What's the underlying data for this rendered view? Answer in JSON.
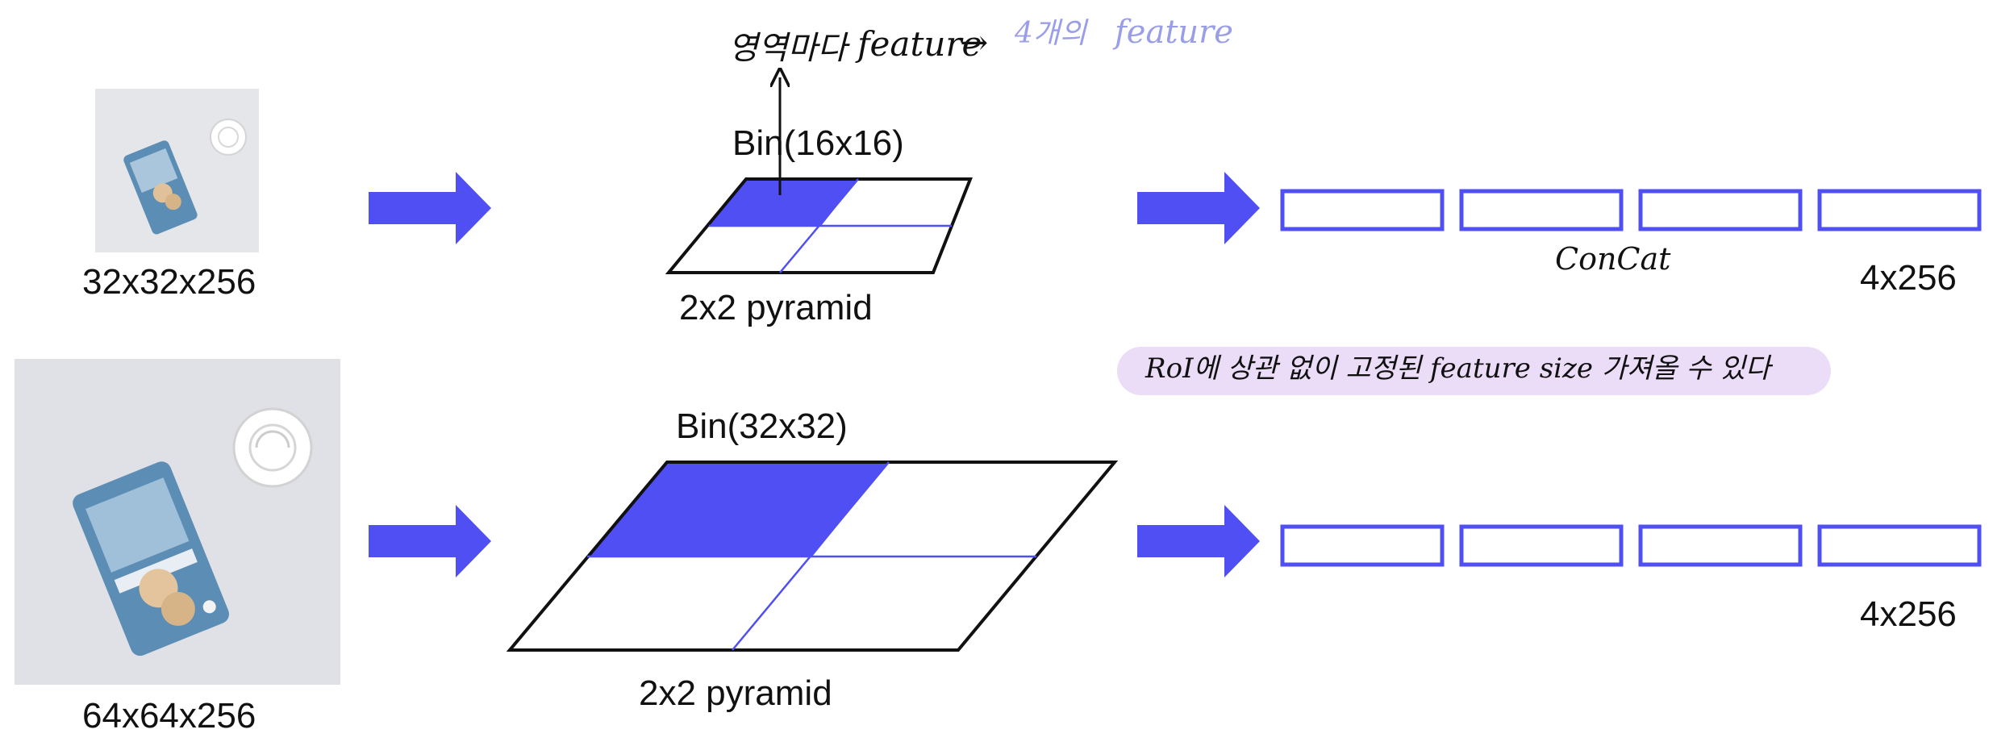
{
  "colors": {
    "accent": "#4f4ff4",
    "highlight_bg": "#ebdcf7",
    "handwriting_faint": "#9a9ee8",
    "outline": "#111111"
  },
  "top_row": {
    "input_label": "32x32x256",
    "bin_label": "Bin(16x16)",
    "pyramid_label": "2x2 pyramid",
    "output_label": "4x256"
  },
  "bottom_row": {
    "input_label": "64x64x256",
    "bin_label": "Bin(32x32)",
    "pyramid_label": "2x2 pyramid",
    "output_label": "4x256"
  },
  "annotations": {
    "region_feature_prefix": "영역마다",
    "region_feature_word": "feature",
    "region_feature_arrow": "→",
    "four_count": "4개의",
    "four_feature": "feature",
    "concat": "ConCat",
    "roi_note": "RoI에 상관 없이 고정된 feature size 가져올 수 있다"
  },
  "icons": {
    "input_image": "photo-of-snack-pouch-and-lid",
    "arrow": "right-block-arrow"
  }
}
